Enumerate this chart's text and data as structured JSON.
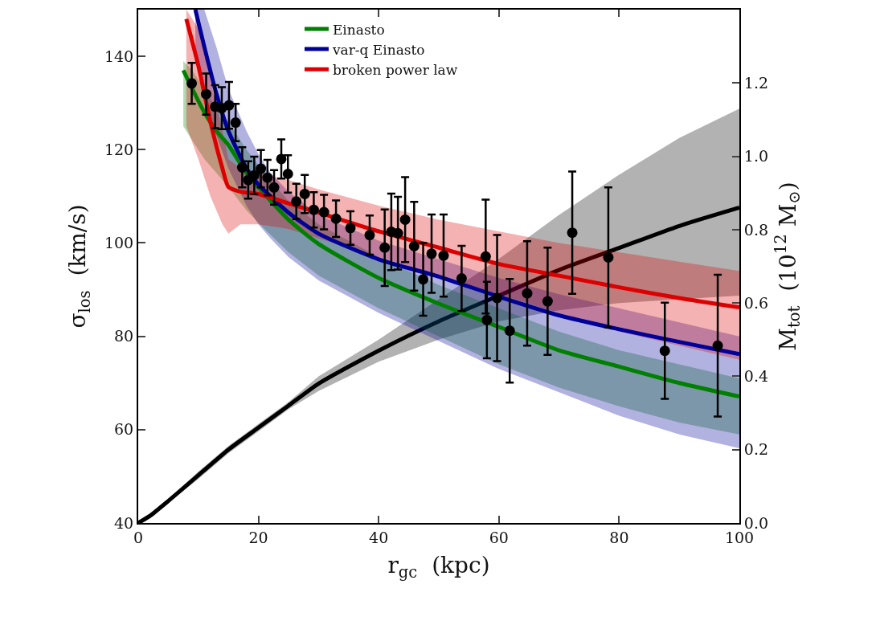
{
  "chart_data": {
    "type": "line",
    "xlabel": "r$_{gc}$  (kpc)",
    "ylabel": "σ$_{los}$  (km/s)",
    "y2label": "M$_{tot}$  (10$^{12}$ M$_{⊙}$)",
    "xlim": [
      0,
      100
    ],
    "xticks": [
      0,
      20,
      40,
      60,
      80,
      100
    ],
    "ylim": [
      40,
      150
    ],
    "yticks": [
      40,
      60,
      80,
      100,
      120,
      140
    ],
    "y2lim": [
      0,
      1.4
    ],
    "y2ticks": [
      {
        "value": 0,
        "label": "0.0"
      },
      {
        "value": 0.2,
        "label": "0.2"
      },
      {
        "value": 0.4,
        "label": "0.4"
      },
      {
        "value": 0.6,
        "label": "0.6"
      },
      {
        "value": 0.8,
        "label": "0.8"
      },
      {
        "value": 1.0,
        "label": "1.0"
      },
      {
        "value": 1.2,
        "label": "1.2"
      }
    ],
    "legend": "top",
    "series": [
      {
        "name": "Einasto",
        "color": "#008000",
        "x": [
          7.5,
          9,
          11,
          13,
          15,
          18,
          21,
          25,
          30,
          40,
          50,
          60,
          70,
          80,
          90,
          100
        ],
        "values": [
          137,
          133,
          128,
          124,
          121,
          115,
          110.5,
          105,
          99.8,
          92.5,
          87,
          82,
          77,
          73.5,
          70,
          67.1
        ],
        "lower": [
          125,
          122,
          118,
          115,
          112,
          107,
          103,
          98,
          93,
          86,
          80,
          74,
          69,
          65,
          61.5,
          59
        ],
        "upper": [
          139,
          137,
          133,
          129,
          126,
          120,
          115,
          109,
          104,
          97,
          91,
          86,
          81,
          77,
          74,
          71
        ]
      },
      {
        "name": "var-q Einasto",
        "color": "#000099",
        "x": [
          9.5,
          11,
          13,
          15,
          18,
          20,
          22,
          25,
          30,
          40,
          50,
          60,
          70,
          80,
          90,
          100
        ],
        "values": [
          150,
          142,
          132,
          124,
          116,
          112.5,
          110,
          106.5,
          102,
          96.5,
          92.8,
          88.5,
          84.5,
          81.5,
          78.8,
          76.2
        ],
        "lower": [
          140,
          132,
          123,
          116,
          108,
          104,
          101,
          97,
          92,
          85,
          79,
          73,
          68,
          63,
          59,
          56
        ],
        "upper": [
          150,
          150,
          142,
          133,
          124,
          119,
          115,
          111,
          106,
          100.5,
          96.5,
          92.5,
          89,
          86,
          83,
          80
        ]
      },
      {
        "name": "broken power law",
        "color": "#dd0000",
        "x": [
          8,
          10,
          12,
          14,
          15,
          17,
          20,
          25,
          30,
          40,
          50,
          60,
          70,
          80,
          90,
          100
        ],
        "values": [
          148,
          138,
          126,
          116,
          112,
          111,
          110.5,
          108.5,
          106.5,
          102.5,
          99,
          95.5,
          93,
          90.5,
          88.2,
          86.2
        ],
        "lower": [
          125,
          118,
          110,
          104,
          102,
          104,
          104,
          103,
          101,
          97,
          93,
          89,
          85,
          81,
          78,
          75
        ],
        "upper": [
          150,
          146,
          135,
          124,
          118,
          116,
          115,
          113.5,
          111.5,
          108,
          105,
          102.5,
          100,
          98,
          96,
          94
        ]
      },
      {
        "axis": "y2",
        "color": "#000000",
        "x": [
          0,
          2,
          5,
          10,
          15,
          20,
          25,
          30,
          40,
          50,
          60,
          70,
          80,
          90,
          100
        ],
        "values": [
          0,
          0.02,
          0.06,
          0.13,
          0.2,
          0.26,
          0.32,
          0.38,
          0.47,
          0.55,
          0.62,
          0.69,
          0.75,
          0.81,
          0.86
        ],
        "lower": [
          0,
          0.02,
          0.055,
          0.12,
          0.19,
          0.25,
          0.31,
          0.36,
          0.44,
          0.5,
          0.55,
          0.58,
          0.6,
          0.61,
          0.62
        ],
        "upper": [
          0,
          0.02,
          0.065,
          0.14,
          0.21,
          0.27,
          0.33,
          0.4,
          0.5,
          0.61,
          0.72,
          0.84,
          0.95,
          1.05,
          1.13
        ]
      },
      {
        "type": "scatter",
        "color": "#000000",
        "marker": "circle",
        "x": [
          8.9,
          11.3,
          12.8,
          13.9,
          15.1,
          16.2,
          17.3,
          18.3,
          19.3,
          20.4,
          21.5,
          22.6,
          23.8,
          24.9,
          26.3,
          27.7,
          29.2,
          30.9,
          32.9,
          35.3,
          38.5,
          41.0,
          42.1,
          43.2,
          44.4,
          45.9,
          47.4,
          48.8,
          50.8,
          53.8,
          57.8,
          58.0,
          59.7,
          61.8,
          64.7,
          68.1,
          72.2,
          78.2,
          87.6,
          96.4
        ],
        "values": [
          134.2,
          131.9,
          129.2,
          128.9,
          129.5,
          125.8,
          116.2,
          113.5,
          114.5,
          115.9,
          114.0,
          111.9,
          118.0,
          114.8,
          108.9,
          110.5,
          107.1,
          106.6,
          105.2,
          103.2,
          101.7,
          99.0,
          102.4,
          102.1,
          105.0,
          99.3,
          92.2,
          97.7,
          97.3,
          92.4,
          97.1,
          83.5,
          88.2,
          81.2,
          89.2,
          87.5,
          102.2,
          96.9,
          76.9,
          78.0
        ],
        "errors": [
          4.4,
          4.4,
          4.6,
          4.5,
          5,
          4,
          4.3,
          4,
          4,
          4,
          3.8,
          3.7,
          4.2,
          4,
          3.8,
          4.1,
          3.8,
          3.7,
          3.9,
          3.6,
          4.2,
          8.2,
          8.2,
          7.8,
          9.1,
          9.5,
          7.8,
          8.4,
          8.8,
          7,
          12.2,
          8.2,
          13.5,
          11.1,
          11.2,
          11.5,
          13.1,
          15,
          10.3,
          15.2
        ]
      }
    ]
  }
}
